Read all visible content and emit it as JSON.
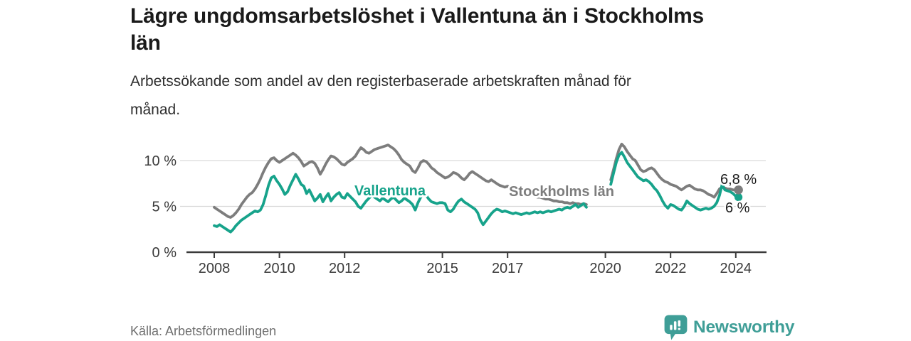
{
  "header": {
    "title": "Lägre ungdomsarbetslöshet i Vallentuna än i Stockholms län",
    "subtitle": "Arbetssökande som andel av den registerbaserade arbetskraften månad för månad."
  },
  "footer": {
    "source": "Källa: Arbetsförmedlingen",
    "brand": "Newsworthy",
    "brand_color": "#3f9e97"
  },
  "chart_data": {
    "type": "line",
    "title": "Lägre ungdomsarbetslöshet i Vallentuna än i Stockholms län",
    "x_unit": "year, monthly data points",
    "x_start_year": 2008,
    "x_start_month": 1,
    "x_end_label": "Feb 2024",
    "data_gap": "Jul 2019 - Feb 2020 (no data, series break)",
    "grid": "horizontal",
    "ylim": [
      0,
      12.5
    ],
    "x_ticks": [
      {
        "v": 2008,
        "label": "2008"
      },
      {
        "v": 2010,
        "label": "2010"
      },
      {
        "v": 2012,
        "label": "2012"
      },
      {
        "v": 2015,
        "label": "2015"
      },
      {
        "v": 2017,
        "label": "2017"
      },
      {
        "v": 2020,
        "label": "2020"
      },
      {
        "v": 2022,
        "label": "2022"
      },
      {
        "v": 2024,
        "label": "2024"
      }
    ],
    "y_ticks": [
      {
        "v": 0,
        "label": "0 %"
      },
      {
        "v": 5,
        "label": "5 %"
      },
      {
        "v": 10,
        "label": "10 %"
      }
    ],
    "series": [
      {
        "name": "Stockholms län",
        "color": "#7d7d7d",
        "end_label": "6,8 %",
        "end_value": 6.8,
        "values": [
          4.9,
          4.7,
          4.5,
          4.3,
          4.1,
          3.9,
          3.8,
          4.0,
          4.3,
          4.7,
          5.2,
          5.6,
          6.0,
          6.3,
          6.5,
          6.9,
          7.4,
          8.0,
          8.7,
          9.3,
          9.8,
          10.2,
          10.3,
          10.0,
          9.8,
          10.0,
          10.2,
          10.4,
          10.6,
          10.8,
          10.6,
          10.3,
          9.9,
          9.4,
          9.6,
          9.8,
          9.9,
          9.7,
          9.2,
          8.5,
          9.0,
          9.6,
          10.1,
          10.5,
          10.4,
          10.2,
          9.9,
          9.6,
          9.5,
          9.8,
          10.0,
          10.2,
          10.5,
          11.0,
          11.4,
          11.2,
          10.9,
          10.8,
          11.0,
          11.2,
          11.3,
          11.4,
          11.5,
          11.6,
          11.7,
          11.5,
          11.3,
          11.0,
          10.6,
          10.1,
          9.8,
          9.6,
          9.4,
          8.9,
          8.7,
          9.2,
          9.8,
          10.0,
          9.9,
          9.6,
          9.2,
          9.0,
          8.7,
          8.5,
          8.3,
          8.1,
          8.2,
          8.4,
          8.7,
          8.6,
          8.4,
          8.1,
          7.9,
          8.2,
          8.6,
          8.8,
          8.6,
          8.4,
          8.2,
          8.0,
          7.8,
          7.7,
          7.9,
          7.7,
          7.5,
          7.3,
          7.2,
          7.1,
          7.2,
          7.0,
          6.9,
          6.8,
          6.7,
          6.6,
          6.5,
          6.4,
          6.3,
          6.2,
          6.1,
          6.0,
          6.0,
          5.9,
          5.8,
          5.8,
          5.7,
          5.6,
          5.6,
          5.5,
          5.5,
          5.4,
          5.4,
          5.3,
          5.4,
          5.3,
          5.3,
          5.2,
          5.3,
          5.2,
          null,
          null,
          null,
          null,
          null,
          null,
          null,
          null,
          7.9,
          9.0,
          10.2,
          11.2,
          11.8,
          11.5,
          11.0,
          10.6,
          10.2,
          10.0,
          9.5,
          9.0,
          8.8,
          8.9,
          9.1,
          9.2,
          9.0,
          8.6,
          8.2,
          7.9,
          7.7,
          7.6,
          7.4,
          7.3,
          7.2,
          7.0,
          6.8,
          7.0,
          7.2,
          7.3,
          7.1,
          6.9,
          6.8,
          6.8,
          6.7,
          6.5,
          6.3,
          6.2,
          6.0,
          6.4,
          6.9,
          7.1,
          7.0,
          6.9,
          6.9,
          6.8,
          6.8,
          6.8
        ]
      },
      {
        "name": "Vallentuna",
        "color": "#17a38b",
        "end_label": "6 %",
        "end_value": 6.0,
        "values": [
          2.9,
          2.8,
          3.0,
          2.8,
          2.6,
          2.4,
          2.2,
          2.5,
          2.9,
          3.2,
          3.5,
          3.7,
          3.9,
          4.1,
          4.3,
          4.5,
          4.4,
          4.6,
          5.2,
          6.2,
          7.3,
          8.1,
          8.3,
          7.8,
          7.4,
          6.9,
          6.3,
          6.6,
          7.3,
          7.9,
          8.5,
          8.0,
          7.4,
          7.2,
          6.4,
          6.8,
          6.2,
          5.6,
          5.9,
          6.3,
          5.5,
          6.0,
          6.4,
          5.6,
          6.0,
          6.3,
          6.5,
          6.0,
          5.9,
          6.4,
          6.1,
          5.8,
          5.5,
          5.0,
          4.8,
          5.2,
          5.6,
          5.9,
          6.2,
          6.0,
          5.8,
          5.6,
          5.9,
          5.7,
          5.5,
          5.8,
          6.0,
          5.7,
          5.4,
          5.6,
          5.9,
          5.7,
          5.5,
          5.2,
          4.6,
          5.4,
          6.0,
          6.4,
          6.2,
          5.8,
          5.5,
          5.4,
          5.3,
          5.4,
          5.4,
          5.3,
          4.6,
          4.4,
          4.7,
          5.2,
          5.6,
          5.8,
          5.5,
          5.3,
          5.1,
          4.9,
          4.7,
          4.3,
          3.5,
          3.0,
          3.4,
          3.8,
          4.2,
          4.5,
          4.7,
          4.6,
          4.4,
          4.5,
          4.4,
          4.3,
          4.2,
          4.3,
          4.2,
          4.1,
          4.2,
          4.3,
          4.2,
          4.3,
          4.4,
          4.3,
          4.4,
          4.3,
          4.4,
          4.5,
          4.4,
          4.5,
          4.6,
          4.7,
          4.6,
          4.8,
          4.9,
          4.8,
          5.0,
          5.2,
          4.9,
          5.1,
          5.3,
          4.9,
          null,
          null,
          null,
          null,
          null,
          null,
          null,
          null,
          7.4,
          8.6,
          9.8,
          10.6,
          10.9,
          10.4,
          9.8,
          9.4,
          9.0,
          8.6,
          8.2,
          8.0,
          7.8,
          7.9,
          7.7,
          7.4,
          7.0,
          6.7,
          6.2,
          5.6,
          5.1,
          4.8,
          5.2,
          5.1,
          4.9,
          4.7,
          4.6,
          5.0,
          5.6,
          5.3,
          5.1,
          4.9,
          4.7,
          4.6,
          4.7,
          4.8,
          4.7,
          4.8,
          5.0,
          5.4,
          6.2,
          7.4,
          6.8,
          6.7,
          6.6,
          6.4,
          6.1,
          6.0
        ]
      }
    ]
  }
}
